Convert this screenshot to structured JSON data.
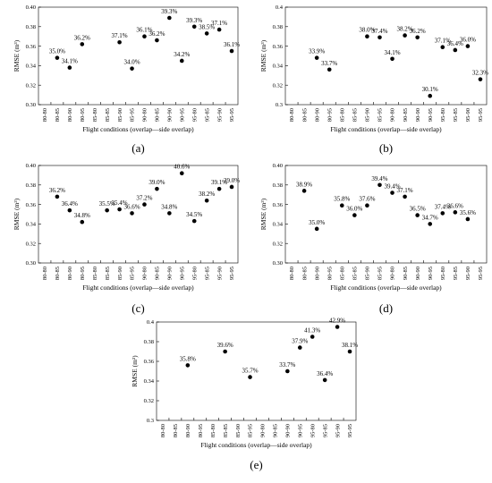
{
  "chart_data": [
    {
      "panel_label": "(a)",
      "type": "scatter",
      "xlabel": "Flight conditions (overlap—side overlap)",
      "ylabel": "RMSE (m³)",
      "categories": [
        "80-80",
        "80-85",
        "80-90",
        "80-95",
        "85-80",
        "85-85",
        "85-90",
        "85-95",
        "90-80",
        "90-85",
        "90-90",
        "90-95",
        "95-80",
        "95-85",
        "95-90",
        "95-95"
      ],
      "yticks": [
        "0.30",
        "0.32",
        "0.34",
        "0.36",
        "0.38",
        "0.40"
      ],
      "ylim": [
        0.3,
        0.4
      ],
      "points": [
        {
          "x": "80-85",
          "y": 0.348,
          "label": "35.0%"
        },
        {
          "x": "80-90",
          "y": 0.338,
          "label": "34.1%"
        },
        {
          "x": "80-95",
          "y": 0.362,
          "label": "36.2%"
        },
        {
          "x": "85-90",
          "y": 0.364,
          "label": "37.1%"
        },
        {
          "x": "85-95",
          "y": 0.337,
          "label": "34.0%"
        },
        {
          "x": "90-80",
          "y": 0.37,
          "label": "36.1%"
        },
        {
          "x": "90-85",
          "y": 0.366,
          "label": "36.2%"
        },
        {
          "x": "90-90",
          "y": 0.389,
          "label": "39.3%"
        },
        {
          "x": "90-95",
          "y": 0.345,
          "label": "34.2%"
        },
        {
          "x": "95-80",
          "y": 0.38,
          "label": "39.3%"
        },
        {
          "x": "95-85",
          "y": 0.373,
          "label": "38.5%"
        },
        {
          "x": "95-90",
          "y": 0.377,
          "label": "37.1%"
        },
        {
          "x": "95-95",
          "y": 0.355,
          "label": "36.1%"
        }
      ]
    },
    {
      "panel_label": "(b)",
      "type": "scatter",
      "xlabel": "Flight conditions (overlap—side overlap)",
      "ylabel": "RMSE (m³)",
      "categories": [
        "80-80",
        "80-85",
        "80-90",
        "80-95",
        "85-80",
        "85-85",
        "85-90",
        "85-95",
        "90-80",
        "90-85",
        "90-90",
        "90-95",
        "95-80",
        "95-85",
        "95-90",
        "95-95"
      ],
      "yticks": [
        "0.3",
        "0.32",
        "0.34",
        "0.36",
        "0.38",
        "0.4"
      ],
      "ylim": [
        0.3,
        0.4
      ],
      "points": [
        {
          "x": "80-90",
          "y": 0.348,
          "label": "33.9%"
        },
        {
          "x": "80-95",
          "y": 0.336,
          "label": "33.7%"
        },
        {
          "x": "85-90",
          "y": 0.37,
          "label": "38.0%"
        },
        {
          "x": "85-95",
          "y": 0.369,
          "label": "37.4%"
        },
        {
          "x": "90-80",
          "y": 0.347,
          "label": "34.1%"
        },
        {
          "x": "90-85",
          "y": 0.371,
          "label": "38.2%"
        },
        {
          "x": "90-90",
          "y": 0.369,
          "label": "36.2%"
        },
        {
          "x": "90-95",
          "y": 0.309,
          "label": "30.1%"
        },
        {
          "x": "95-80",
          "y": 0.359,
          "label": "37.1%"
        },
        {
          "x": "95-85",
          "y": 0.356,
          "label": "36.4%"
        },
        {
          "x": "95-90",
          "y": 0.36,
          "label": "36.0%"
        },
        {
          "x": "95-95",
          "y": 0.326,
          "label": "32.3%"
        }
      ]
    },
    {
      "panel_label": "(c)",
      "type": "scatter",
      "xlabel": "Flight conditions (overlap—side overlap)",
      "ylabel": "RMSE (m³)",
      "categories": [
        "80-80",
        "80-85",
        "80-90",
        "80-95",
        "85-80",
        "85-85",
        "85-90",
        "85-95",
        "90-80",
        "90-85",
        "90-90",
        "90-95",
        "95-80",
        "95-85",
        "95-90",
        "95-95"
      ],
      "yticks": [
        "0.30",
        "0.32",
        "0.34",
        "0.36",
        "0.38",
        "0.40"
      ],
      "ylim": [
        0.3,
        0.4
      ],
      "points": [
        {
          "x": "80-85",
          "y": 0.368,
          "label": "36.2%"
        },
        {
          "x": "80-90",
          "y": 0.354,
          "label": "36.4%"
        },
        {
          "x": "80-95",
          "y": 0.342,
          "label": "34.8%"
        },
        {
          "x": "85-85",
          "y": 0.354,
          "label": "35.5%"
        },
        {
          "x": "85-90",
          "y": 0.355,
          "label": "35.4%"
        },
        {
          "x": "85-95",
          "y": 0.351,
          "label": "36.6%"
        },
        {
          "x": "90-80",
          "y": 0.36,
          "label": "37.2%"
        },
        {
          "x": "90-85",
          "y": 0.376,
          "label": "39.0%"
        },
        {
          "x": "90-90",
          "y": 0.351,
          "label": "34.8%"
        },
        {
          "x": "90-95",
          "y": 0.392,
          "label": "40.6%"
        },
        {
          "x": "95-80",
          "y": 0.343,
          "label": "34.5%"
        },
        {
          "x": "95-85",
          "y": 0.364,
          "label": "38.2%"
        },
        {
          "x": "95-90",
          "y": 0.376,
          "label": "39.1%"
        },
        {
          "x": "95-95",
          "y": 0.378,
          "label": "39.0%"
        }
      ]
    },
    {
      "panel_label": "(d)",
      "type": "scatter",
      "xlabel": "Flight conditions (overlap—side overlap)",
      "ylabel": "RMSE (m³)",
      "categories": [
        "80-80",
        "80-85",
        "80-90",
        "80-95",
        "85-80",
        "85-85",
        "85-90",
        "85-95",
        "90-80",
        "90-85",
        "90-90",
        "90-95",
        "95-80",
        "95-85",
        "95-90",
        "95-95"
      ],
      "yticks": [
        "0.30",
        "0.32",
        "0.34",
        "0.36",
        "0.38",
        "0.40"
      ],
      "ylim": [
        0.3,
        0.4
      ],
      "points": [
        {
          "x": "80-85",
          "y": 0.374,
          "label": "38.9%"
        },
        {
          "x": "80-90",
          "y": 0.335,
          "label": "35.0%"
        },
        {
          "x": "85-80",
          "y": 0.359,
          "label": "35.8%"
        },
        {
          "x": "85-85",
          "y": 0.349,
          "label": "36.0%"
        },
        {
          "x": "85-90",
          "y": 0.359,
          "label": "37.6%"
        },
        {
          "x": "85-95",
          "y": 0.38,
          "label": "39.4%"
        },
        {
          "x": "90-80",
          "y": 0.372,
          "label": "39.4%"
        },
        {
          "x": "90-85",
          "y": 0.368,
          "label": "37.1%"
        },
        {
          "x": "90-90",
          "y": 0.349,
          "label": "36.5%"
        },
        {
          "x": "90-95",
          "y": 0.34,
          "label": "34.7%"
        },
        {
          "x": "95-80",
          "y": 0.351,
          "label": "37.4%"
        },
        {
          "x": "95-85",
          "y": 0.352,
          "label": "36.6%"
        },
        {
          "x": "95-90",
          "y": 0.345,
          "label": "35.6%"
        }
      ]
    },
    {
      "panel_label": "(e)",
      "type": "scatter",
      "xlabel": "Flight conditions (overlap—side overlap)",
      "ylabel": "RMSE (m³)",
      "categories": [
        "80-80",
        "80-85",
        "80-90",
        "80-95",
        "85-80",
        "85-85",
        "85-90",
        "85-95",
        "90-80",
        "90-85",
        "90-90",
        "90-95",
        "95-80",
        "95-85",
        "95-90",
        "95-95"
      ],
      "yticks": [
        "0.3",
        "0.32",
        "0.34",
        "0.36",
        "0.38",
        "0.4"
      ],
      "ylim": [
        0.3,
        0.4
      ],
      "points": [
        {
          "x": "80-90",
          "y": 0.356,
          "label": "35.8%"
        },
        {
          "x": "85-85",
          "y": 0.37,
          "label": "39.6%"
        },
        {
          "x": "85-95",
          "y": 0.344,
          "label": "35.7%"
        },
        {
          "x": "90-90",
          "y": 0.35,
          "label": "33.7%"
        },
        {
          "x": "90-95",
          "y": 0.374,
          "label": "37.9%"
        },
        {
          "x": "95-80",
          "y": 0.385,
          "label": "41.3%"
        },
        {
          "x": "95-85",
          "y": 0.341,
          "label": "36.4%"
        },
        {
          "x": "95-90",
          "y": 0.395,
          "label": "42.9%"
        },
        {
          "x": "95-95",
          "y": 0.37,
          "label": "38.1%"
        }
      ]
    }
  ]
}
